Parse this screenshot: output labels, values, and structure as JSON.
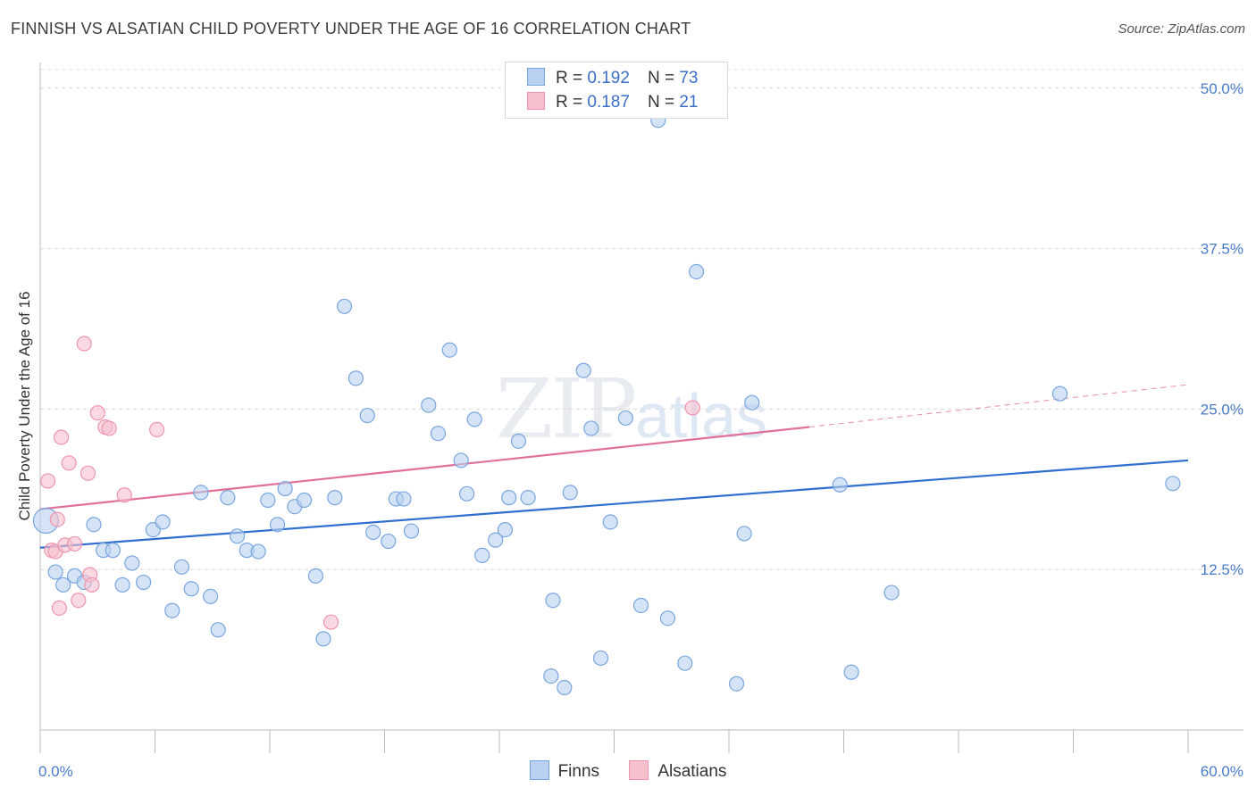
{
  "header": {
    "title": "FINNISH VS ALSATIAN CHILD POVERTY UNDER THE AGE OF 16 CORRELATION CHART",
    "source": "Source: ZipAtlas.com"
  },
  "watermark": {
    "zip": "ZIP",
    "atlas": "atlas"
  },
  "legend": {
    "rows": [
      {
        "r_label": "R =",
        "r_value": "0.192",
        "n_label": "N =",
        "n_value": "73"
      },
      {
        "r_label": "R =",
        "r_value": "0.187",
        "n_label": "N =",
        "n_value": "21"
      }
    ]
  },
  "bottom_legend": {
    "finns": "Finns",
    "alsatians": "Alsatians"
  },
  "colors": {
    "finns_fill": "#b8d1f0",
    "finns_stroke": "#7aa6e0",
    "finns_line": "#2f6fcf",
    "alsatians_fill": "#f6c0cf",
    "alsatians_stroke": "#ee95ad",
    "alsatians_line": "#e0709a",
    "tick_text": "#4a7cc9"
  },
  "chart_data": {
    "type": "scatter",
    "title": "FINNISH VS ALSATIAN CHILD POVERTY UNDER THE AGE OF 16 CORRELATION CHART",
    "ylabel": "Child Poverty Under the Age of 16",
    "xlabel": "",
    "xlim": [
      0,
      60
    ],
    "ylim": [
      0,
      52
    ],
    "x_tick_labels": [
      "0.0%",
      "60.0%"
    ],
    "y_ticks": [
      12.5,
      25.0,
      37.5,
      50.0
    ],
    "y_tick_labels": [
      "12.5%",
      "25.0%",
      "37.5%",
      "50.0%"
    ],
    "grid": true,
    "legend_position": "top-center",
    "series": [
      {
        "name": "Finns",
        "trend": {
          "x": [
            0,
            60
          ],
          "y": [
            14.2,
            21.0
          ]
        },
        "points": [
          [
            0.3,
            16.3
          ],
          [
            0.8,
            12.3
          ],
          [
            1.2,
            11.3
          ],
          [
            1.8,
            12.0
          ],
          [
            2.3,
            11.5
          ],
          [
            2.8,
            16.0
          ],
          [
            3.3,
            14.0
          ],
          [
            3.8,
            14.0
          ],
          [
            4.3,
            11.3
          ],
          [
            4.8,
            13.0
          ],
          [
            5.4,
            11.5
          ],
          [
            5.9,
            15.6
          ],
          [
            6.4,
            16.2
          ],
          [
            6.9,
            9.3
          ],
          [
            7.4,
            12.7
          ],
          [
            7.9,
            11.0
          ],
          [
            8.4,
            18.5
          ],
          [
            8.9,
            10.4
          ],
          [
            9.3,
            7.8
          ],
          [
            9.8,
            18.1
          ],
          [
            10.3,
            15.1
          ],
          [
            10.8,
            14.0
          ],
          [
            11.4,
            13.9
          ],
          [
            11.9,
            17.9
          ],
          [
            12.4,
            16.0
          ],
          [
            12.8,
            18.8
          ],
          [
            13.3,
            17.4
          ],
          [
            13.8,
            17.9
          ],
          [
            14.4,
            12.0
          ],
          [
            14.8,
            7.1
          ],
          [
            15.4,
            18.1
          ],
          [
            15.9,
            33.0
          ],
          [
            16.5,
            27.4
          ],
          [
            17.1,
            24.5
          ],
          [
            17.4,
            15.4
          ],
          [
            18.2,
            14.7
          ],
          [
            18.6,
            18.0
          ],
          [
            19.0,
            18.0
          ],
          [
            19.4,
            15.5
          ],
          [
            20.3,
            25.3
          ],
          [
            20.8,
            23.1
          ],
          [
            21.4,
            29.6
          ],
          [
            22.0,
            21.0
          ],
          [
            22.3,
            18.4
          ],
          [
            22.7,
            24.2
          ],
          [
            23.1,
            13.6
          ],
          [
            23.8,
            14.8
          ],
          [
            24.3,
            15.6
          ],
          [
            24.5,
            18.1
          ],
          [
            25.0,
            22.5
          ],
          [
            25.5,
            18.1
          ],
          [
            26.7,
            4.2
          ],
          [
            26.8,
            10.1
          ],
          [
            27.4,
            3.3
          ],
          [
            27.7,
            18.5
          ],
          [
            28.4,
            28.0
          ],
          [
            28.8,
            23.5
          ],
          [
            29.3,
            5.6
          ],
          [
            29.8,
            16.2
          ],
          [
            30.6,
            24.3
          ],
          [
            31.4,
            9.7
          ],
          [
            32.3,
            47.5
          ],
          [
            32.8,
            8.7
          ],
          [
            33.7,
            5.2
          ],
          [
            34.3,
            35.7
          ],
          [
            36.4,
            3.6
          ],
          [
            36.8,
            15.3
          ],
          [
            37.2,
            25.5
          ],
          [
            41.8,
            19.1
          ],
          [
            42.4,
            4.5
          ],
          [
            44.5,
            10.7
          ],
          [
            53.3,
            26.2
          ],
          [
            59.2,
            19.2
          ]
        ]
      },
      {
        "name": "Alsatians",
        "trend": {
          "x": [
            0,
            40.2
          ],
          "y": [
            17.2,
            23.6
          ]
        },
        "trend_extension": {
          "x": [
            40.2,
            60
          ],
          "y": [
            23.6,
            26.9
          ]
        },
        "points": [
          [
            0.4,
            19.4
          ],
          [
            0.6,
            14.0
          ],
          [
            0.8,
            13.9
          ],
          [
            0.9,
            16.4
          ],
          [
            1.0,
            9.5
          ],
          [
            1.1,
            22.8
          ],
          [
            1.3,
            14.4
          ],
          [
            1.5,
            20.8
          ],
          [
            1.8,
            14.5
          ],
          [
            2.0,
            10.1
          ],
          [
            2.3,
            30.1
          ],
          [
            2.5,
            20.0
          ],
          [
            2.6,
            12.1
          ],
          [
            2.7,
            11.3
          ],
          [
            3.0,
            24.7
          ],
          [
            3.4,
            23.6
          ],
          [
            3.6,
            23.5
          ],
          [
            4.4,
            18.3
          ],
          [
            6.1,
            23.4
          ],
          [
            15.2,
            8.4
          ],
          [
            34.1,
            25.1
          ]
        ]
      }
    ]
  }
}
